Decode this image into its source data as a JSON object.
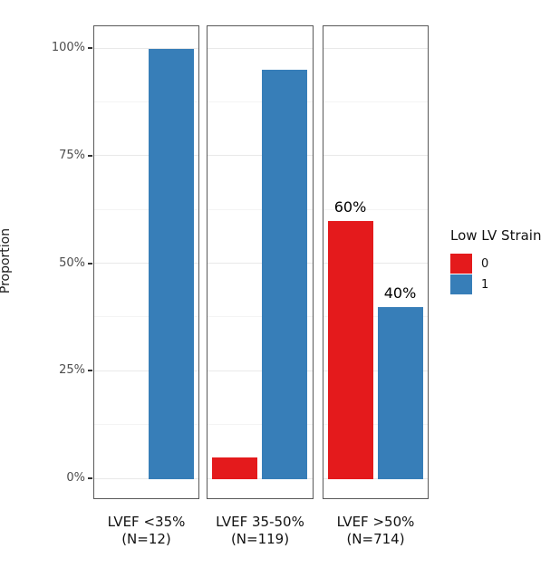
{
  "chart_data": {
    "type": "bar",
    "title": "",
    "ylabel": "Proportion",
    "xlabel": "",
    "grid": true,
    "legend_position": "right",
    "y_axis": {
      "range": [
        0,
        100
      ],
      "ticks": [
        0,
        25,
        50,
        75,
        100
      ],
      "tick_labels": [
        "0%",
        "25%",
        "50%",
        "75%",
        "100%"
      ],
      "minor_gridlines": [
        12.5,
        37.5,
        62.5,
        87.5
      ]
    },
    "facets": [
      {
        "category": "LVEF <35%",
        "n_label": "(N=12)",
        "bars": [
          {
            "series": "0",
            "value_pct": 0,
            "label": ""
          },
          {
            "series": "1",
            "value_pct": 100,
            "label": ""
          }
        ]
      },
      {
        "category": "LVEF 35-50%",
        "n_label": "(N=119)",
        "bars": [
          {
            "series": "0",
            "value_pct": 5,
            "label": ""
          },
          {
            "series": "1",
            "value_pct": 95,
            "label": ""
          }
        ]
      },
      {
        "category": "LVEF >50%",
        "n_label": "(N=714)",
        "bars": [
          {
            "series": "0",
            "value_pct": 60,
            "label": "60%"
          },
          {
            "series": "1",
            "value_pct": 40,
            "label": "40%"
          }
        ]
      }
    ],
    "legend": {
      "title": "Low LV Strain",
      "entries": [
        {
          "label": "0",
          "color": "#E41A1C"
        },
        {
          "label": "1",
          "color": "#377EB8"
        }
      ]
    },
    "series_colors": {
      "0": "#E41A1C",
      "1": "#377EB8"
    }
  }
}
